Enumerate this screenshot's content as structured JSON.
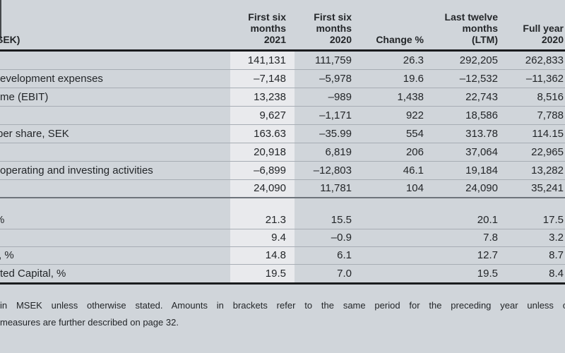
{
  "colors": {
    "page_background": "#d0d5da",
    "highlight_column": "#e9eaed",
    "rule_dark": "#1a1c1e",
    "row_separator": "#a7adb4",
    "section_separator": "#6e747b",
    "text": "#232629"
  },
  "table": {
    "unit_label": "SEK)",
    "col_headers": [
      {
        "lines": [
          "First six",
          "months",
          "2021"
        ]
      },
      {
        "lines": [
          "First six",
          "months",
          "2020"
        ]
      },
      {
        "lines": [
          "Change %"
        ]
      },
      {
        "lines": [
          "Last twelve",
          "months",
          "(LTM)"
        ]
      },
      {
        "lines": [
          "Full year",
          "2020"
        ]
      }
    ],
    "rows": [
      {
        "label": "",
        "values": [
          "141,131",
          "111,759",
          "26.3",
          "292,205",
          "262,833"
        ]
      },
      {
        "label": "evelopment expenses",
        "values": [
          "–7,148",
          "–5,978",
          "19.6",
          "–12,532",
          "–11,362"
        ]
      },
      {
        "label": "me (EBIT)",
        "values": [
          "13,238",
          "–989",
          "1,438",
          "22,743",
          "8,516"
        ]
      },
      {
        "label": "",
        "values": [
          "9,627",
          "–1,171",
          "922",
          "18,586",
          "7,788"
        ]
      },
      {
        "label": "per share, SEK",
        "values": [
          "163.63",
          "–35.99",
          "554",
          "313.78",
          "114.15"
        ]
      },
      {
        "label": "",
        "values": [
          "20,918",
          "6,819",
          "206",
          "37,064",
          "22,965"
        ]
      },
      {
        "label": "operating and investing activities",
        "values": [
          "–6,899",
          "–12,803",
          "46.1",
          "19,184",
          "13,282"
        ]
      },
      {
        "label": "",
        "values": [
          "24,090",
          "11,781",
          "104",
          "24,090",
          "35,241"
        ]
      }
    ],
    "ratio_rows": [
      {
        "label": "%",
        "values": [
          "21.3",
          "15.5",
          "",
          "20.1",
          "17.5"
        ]
      },
      {
        "label": "%",
        "values": [
          "9.4",
          "–0.9",
          "",
          "7.8",
          "3.2"
        ]
      },
      {
        "label": ", %",
        "values": [
          "14.8",
          "6.1",
          "",
          "12.7",
          "8.7"
        ]
      },
      {
        "label": "ted Capital, %",
        "values": [
          "19.5",
          "7.0",
          "",
          "19.5",
          "8.4"
        ]
      }
    ]
  },
  "footnote": {
    "line1": "in MSEK unless otherwise stated. Amounts in brackets refer to the same period for the preceding year unless o",
    "line2": "measures are further described on page 32."
  }
}
